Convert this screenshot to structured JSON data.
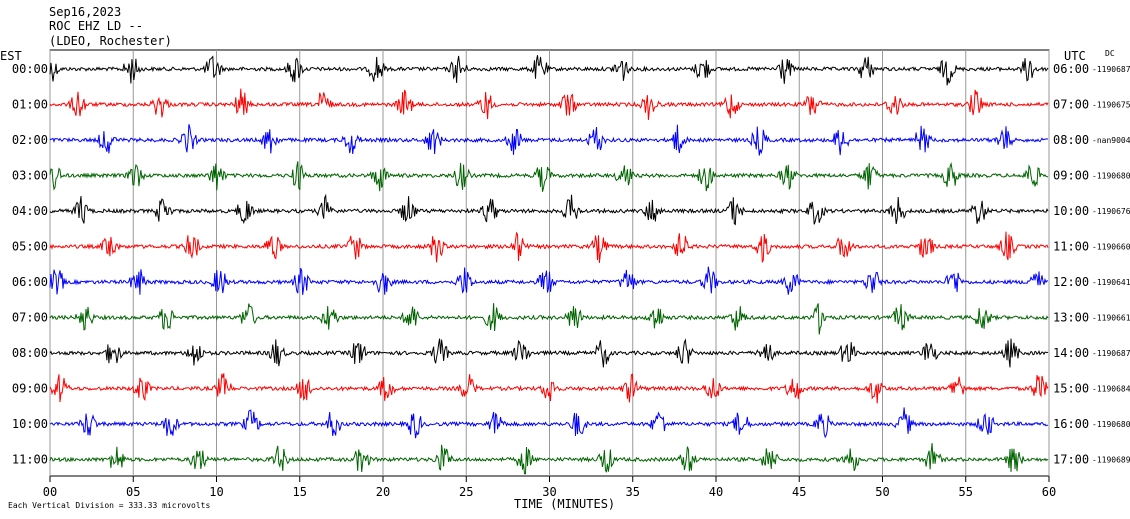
{
  "header": {
    "date": "Sep16,2023",
    "station": "ROC EHZ LD --",
    "network": "(LDEO, Rochester)"
  },
  "chart_data": {
    "type": "line",
    "title": "ROC EHZ LD --",
    "left_axis_label": "EST",
    "right_axis_label": "UTC",
    "dc_label": "DC",
    "xlabel": "TIME (MINUTES)",
    "footer_note": "Each Vertical Division = 333.33 microvolts",
    "xlim": [
      0,
      60
    ],
    "x_ticks": [
      "00",
      "05",
      "10",
      "15",
      "20",
      "25",
      "30",
      "35",
      "40",
      "45",
      "50",
      "55",
      "60"
    ],
    "row_colors": [
      "#000000",
      "#ff0000",
      "#0000ff",
      "#006400"
    ],
    "rows": [
      {
        "est": "00:00",
        "utc": "06:00",
        "dc": "-1190687"
      },
      {
        "est": "01:00",
        "utc": "07:00",
        "dc": "-1190675"
      },
      {
        "est": "02:00",
        "utc": "08:00",
        "dc": "-nan9004"
      },
      {
        "est": "03:00",
        "utc": "09:00",
        "dc": "-1190680"
      },
      {
        "est": "04:00",
        "utc": "10:00",
        "dc": "-1190676"
      },
      {
        "est": "05:00",
        "utc": "11:00",
        "dc": "-1190660"
      },
      {
        "est": "06:00",
        "utc": "12:00",
        "dc": "-1190641"
      },
      {
        "est": "07:00",
        "utc": "13:00",
        "dc": "-1190661"
      },
      {
        "est": "08:00",
        "utc": "14:00",
        "dc": "-1190687"
      },
      {
        "est": "09:00",
        "utc": "15:00",
        "dc": "-1190684"
      },
      {
        "est": "10:00",
        "utc": "16:00",
        "dc": "-1190680"
      },
      {
        "est": "11:00",
        "utc": "17:00",
        "dc": "-1190689"
      }
    ],
    "event_period_minutes": 4.9,
    "grid": true
  }
}
